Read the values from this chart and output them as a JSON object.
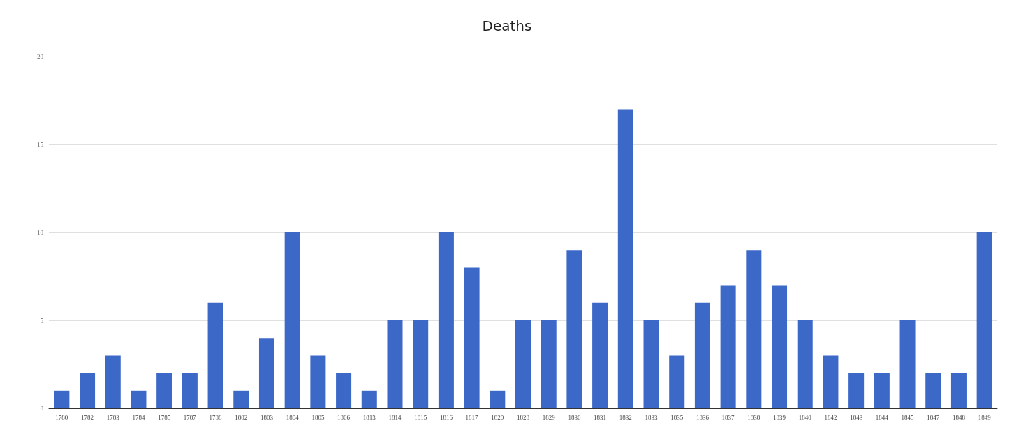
{
  "chart_data": {
    "type": "bar",
    "title": "Deaths",
    "categories": [
      "1780",
      "1782",
      "1783",
      "1784",
      "1785",
      "1787",
      "1788",
      "1802",
      "1803",
      "1804",
      "1805",
      "1806",
      "1813",
      "1814",
      "1815",
      "1816",
      "1817",
      "1820",
      "1828",
      "1829",
      "1830",
      "1831",
      "1832",
      "1833",
      "1835",
      "1836",
      "1837",
      "1838",
      "1839",
      "1840",
      "1842",
      "1843",
      "1844",
      "1845",
      "1847",
      "1848",
      "1849"
    ],
    "values": [
      1,
      2,
      3,
      1,
      2,
      2,
      6,
      1,
      4,
      10,
      3,
      2,
      1,
      5,
      5,
      10,
      8,
      1,
      5,
      5,
      9,
      6,
      17,
      5,
      3,
      6,
      7,
      9,
      7,
      5,
      3,
      2,
      2,
      5,
      2,
      2,
      10
    ],
    "color": "#3c68c8",
    "ylim": [
      0,
      20
    ],
    "yticks": [
      0,
      5,
      10,
      15,
      20
    ],
    "grid": "y"
  }
}
